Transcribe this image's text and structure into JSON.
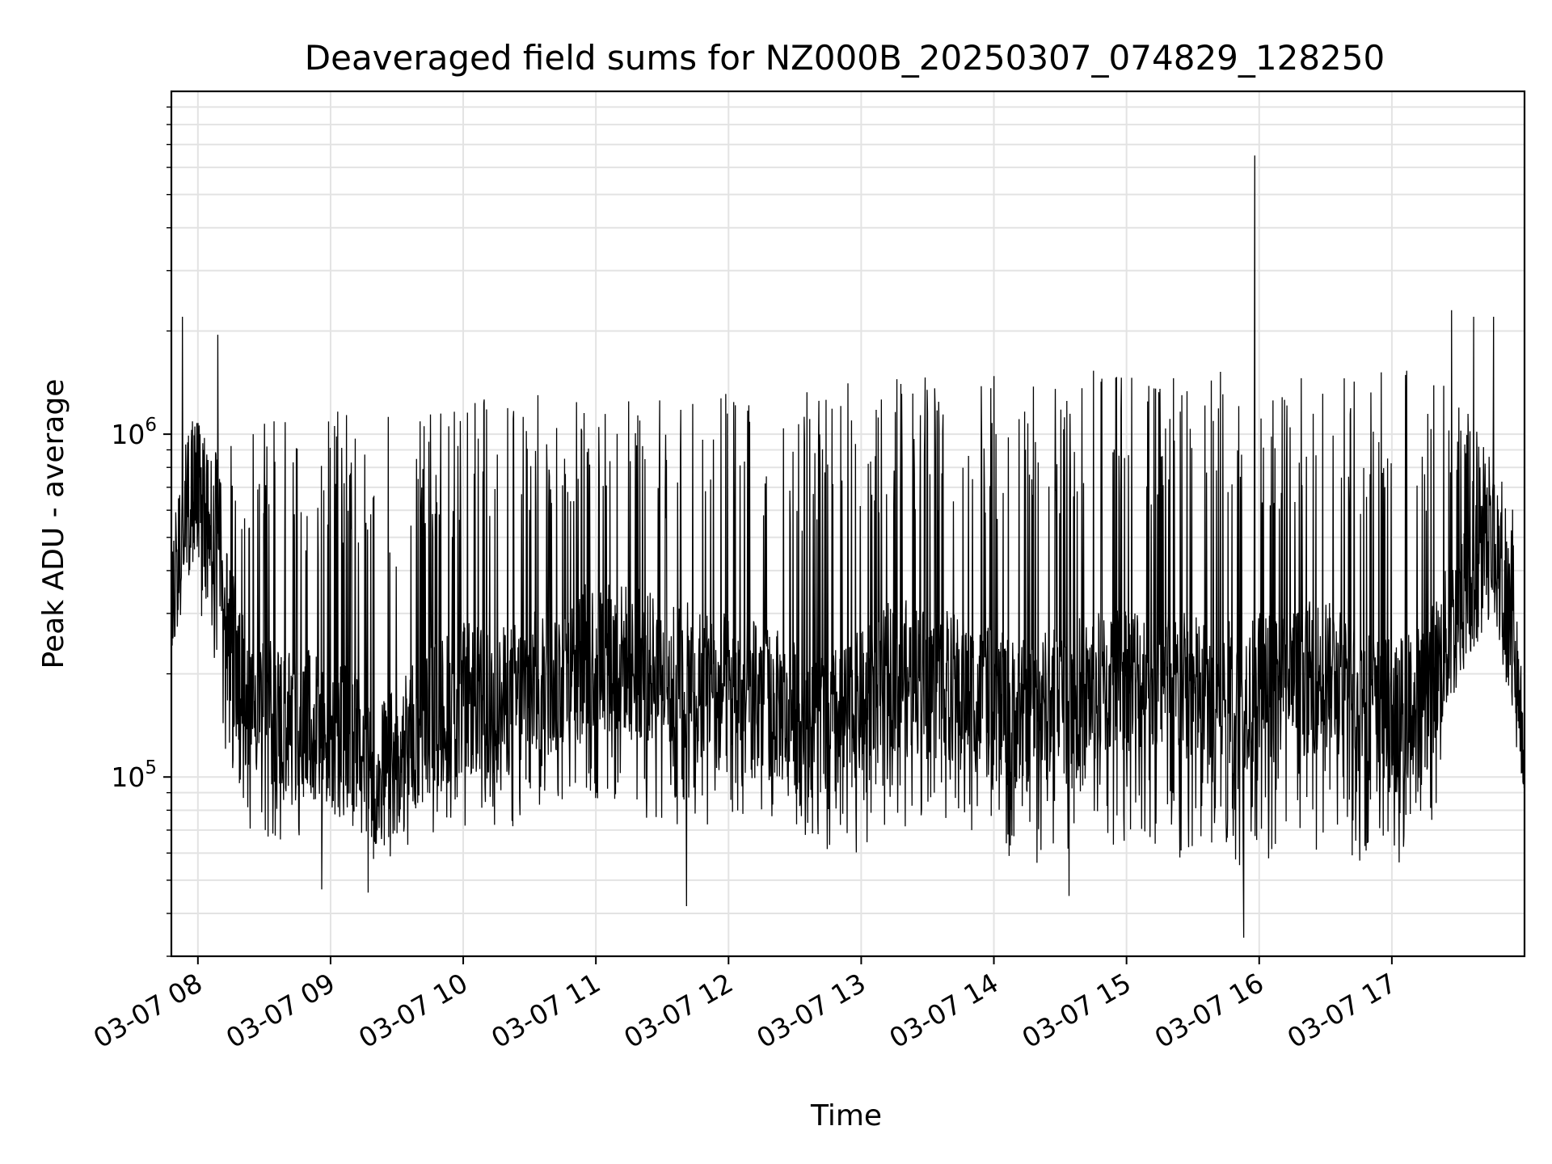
{
  "chart_data": {
    "type": "line",
    "title": "Deaveraged field sums for NZ000B_20250307_074829_128250",
    "xlabel": "Time",
    "ylabel": "Peak ADU - average",
    "yscale": "log",
    "xlim": [
      "2025-03-07 07:48",
      "2025-03-07 18:00"
    ],
    "ylim": [
      30000,
      10000000
    ],
    "grid": true,
    "x_ticks": [
      "03-07 08",
      "03-07 09",
      "03-07 10",
      "03-07 11",
      "03-07 12",
      "03-07 13",
      "03-07 14",
      "03-07 15",
      "03-07 16",
      "03-07 17"
    ],
    "y_ticks": [
      {
        "base": "10",
        "exp": "5",
        "value": 100000
      },
      {
        "base": "10",
        "exp": "6",
        "value": 1000000
      }
    ],
    "line_color": "#000000",
    "series": [
      {
        "x": [
          "07:48",
          "07:55",
          "08:00",
          "08:10",
          "08:20",
          "08:35",
          "08:50",
          "09:00",
          "09:10",
          "09:20",
          "09:30",
          "09:45",
          "10:00",
          "10:15",
          "10:30",
          "10:45",
          "11:00",
          "11:15",
          "11:30",
          "11:45",
          "12:00",
          "12:15",
          "12:30",
          "12:45",
          "13:00",
          "13:15",
          "13:30",
          "13:45",
          "14:00",
          "14:15",
          "14:30",
          "14:45",
          "15:00",
          "15:15",
          "15:30",
          "15:45",
          "16:00",
          "16:15",
          "16:30",
          "16:45",
          "17:00",
          "17:15",
          "17:30",
          "17:45",
          "17:55",
          "18:00"
        ],
        "baseline": [
          300000,
          600000,
          700000,
          350000,
          180000,
          150000,
          140000,
          130000,
          130000,
          100000,
          110000,
          150000,
          170000,
          160000,
          180000,
          200000,
          230000,
          220000,
          200000,
          190000,
          180000,
          170000,
          150000,
          140000,
          160000,
          200000,
          190000,
          180000,
          160000,
          150000,
          170000,
          180000,
          200000,
          190000,
          180000,
          170000,
          180000,
          190000,
          200000,
          170000,
          150000,
          170000,
          300000,
          500000,
          250000,
          110000
        ],
        "envelope_high": [
          450000,
          1300000,
          1100000,
          950000,
          1000000,
          1150000,
          1200000,
          1150000,
          1200000,
          1250000,
          1200000,
          1200000,
          1250000,
          1300000,
          1350000,
          1300000,
          1350000,
          1350000,
          1300000,
          1350000,
          1350000,
          1400000,
          1450000,
          1400000,
          1450000,
          1500000,
          1500000,
          1450000,
          1500000,
          1550000,
          1550000,
          1550000,
          1600000,
          1550000,
          1500000,
          1550000,
          1550000,
          1500000,
          1550000,
          1550000,
          1600000,
          1550000,
          1450000,
          900000,
          700000,
          250000
        ],
        "envelope_low": [
          260000,
          380000,
          320000,
          110000,
          70000,
          60000,
          70000,
          75000,
          70000,
          50000,
          60000,
          65000,
          70000,
          70000,
          70000,
          75000,
          80000,
          80000,
          70000,
          70000,
          75000,
          75000,
          70000,
          60000,
          60000,
          70000,
          75000,
          75000,
          60000,
          55000,
          55000,
          60000,
          60000,
          55000,
          55000,
          55000,
          55000,
          60000,
          60000,
          55000,
          55000,
          60000,
          150000,
          300000,
          150000,
          100000
        ],
        "spikes": [
          {
            "x": "07:53",
            "y": 2200000
          },
          {
            "x": "08:09",
            "y": 1950000
          },
          {
            "x": "08:25",
            "y": 1000000
          },
          {
            "x": "08:56",
            "y": 47000
          },
          {
            "x": "09:17",
            "y": 46000
          },
          {
            "x": "11:41",
            "y": 42000
          },
          {
            "x": "14:34",
            "y": 45000
          },
          {
            "x": "15:53",
            "y": 34000
          },
          {
            "x": "15:58",
            "y": 6500000
          },
          {
            "x": "17:27",
            "y": 2300000
          },
          {
            "x": "17:37",
            "y": 2200000
          },
          {
            "x": "17:46",
            "y": 2200000
          }
        ]
      }
    ]
  }
}
